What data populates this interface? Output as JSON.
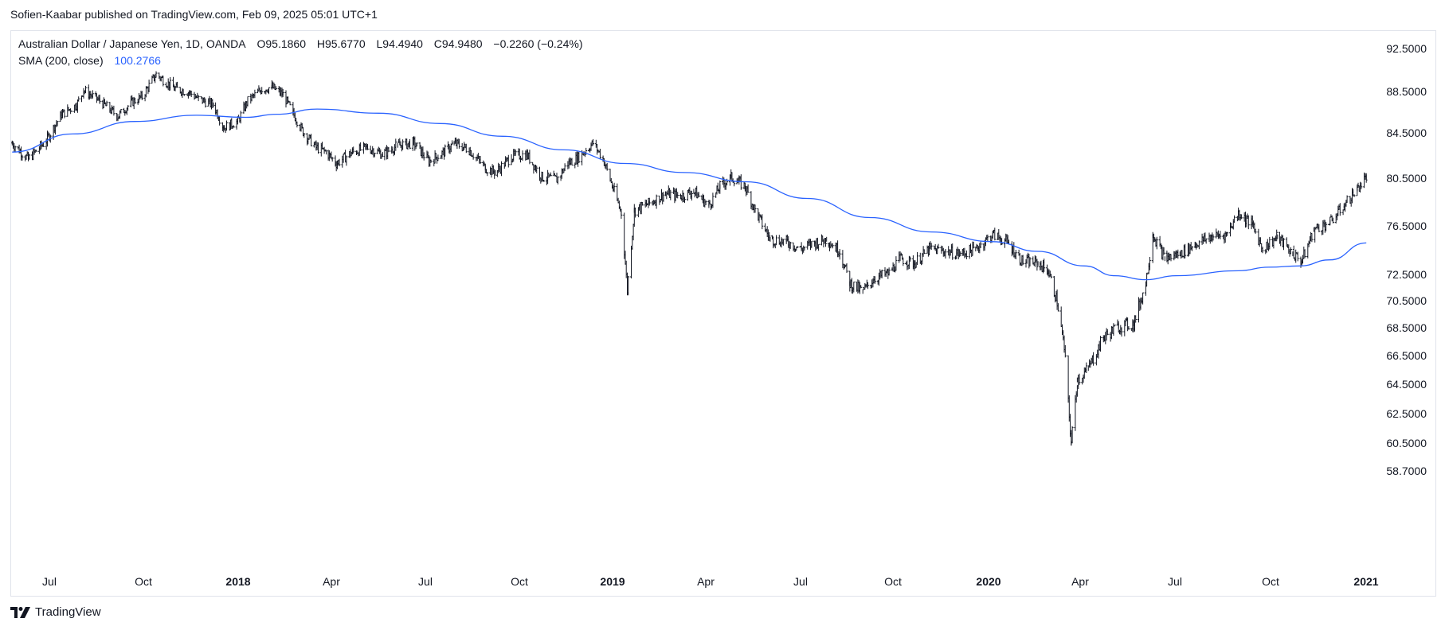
{
  "header": {
    "publish_text": "Sofien-Kaabar published on TradingView.com, Feb 09, 2025 05:01 UTC+1"
  },
  "legend": {
    "symbol": "Australian Dollar / Japanese Yen, 1D, OANDA",
    "open": "O95.1860",
    "high": "H95.6770",
    "low": "L94.4940",
    "close": "C94.9480",
    "change": "−0.2260 (−0.24%)",
    "indicator_label": "SMA (200, close)",
    "indicator_value": "100.2766",
    "indicator_color": "#2962ff"
  },
  "footer": {
    "brand": "TradingView"
  },
  "chart_data": {
    "type": "line",
    "title": "Australian Dollar / Japanese Yen, 1D, OANDA",
    "colors": {
      "price": "#131722",
      "sma": "#2962ff"
    },
    "y_axis": {
      "side": "right",
      "ticks": [
        "92.5000",
        "88.5000",
        "84.5000",
        "80.5000",
        "76.5000",
        "72.5000",
        "70.5000",
        "68.5000",
        "66.5000",
        "64.5000",
        "62.5000",
        "60.5000",
        "58.7000"
      ]
    },
    "x_axis": {
      "ticks": [
        {
          "label": "Jul",
          "bold": false
        },
        {
          "label": "Oct",
          "bold": false
        },
        {
          "label": "2018",
          "bold": true
        },
        {
          "label": "Apr",
          "bold": false
        },
        {
          "label": "Jul",
          "bold": false
        },
        {
          "label": "Oct",
          "bold": false
        },
        {
          "label": "2019",
          "bold": true
        },
        {
          "label": "Apr",
          "bold": false
        },
        {
          "label": "Jul",
          "bold": false
        },
        {
          "label": "Oct",
          "bold": false
        },
        {
          "label": "2020",
          "bold": true
        },
        {
          "label": "Apr",
          "bold": false
        },
        {
          "label": "Jul",
          "bold": false
        },
        {
          "label": "Oct",
          "bold": false
        },
        {
          "label": "2021",
          "bold": true
        }
      ]
    },
    "grid": false,
    "series": [
      {
        "name": "Australian Dollar / Japanese Yen",
        "style": "ohlc-bars",
        "points": [
          [
            "2017-05-02",
            83.6
          ],
          [
            "2017-05-18",
            82.2
          ],
          [
            "2017-06-05",
            83.8
          ],
          [
            "2017-06-20",
            86.3
          ],
          [
            "2017-07-05",
            87.2
          ],
          [
            "2017-07-12",
            88.6
          ],
          [
            "2017-07-28",
            87.6
          ],
          [
            "2017-08-15",
            86.1
          ],
          [
            "2017-08-28",
            87.4
          ],
          [
            "2017-09-08",
            88.0
          ],
          [
            "2017-09-22",
            90.1
          ],
          [
            "2017-10-10",
            88.8
          ],
          [
            "2017-10-25",
            88.4
          ],
          [
            "2017-11-03",
            87.8
          ],
          [
            "2017-11-18",
            87.2
          ],
          [
            "2017-11-28",
            85.0
          ],
          [
            "2017-12-12",
            85.6
          ],
          [
            "2017-12-22",
            87.6
          ],
          [
            "2018-01-05",
            88.7
          ],
          [
            "2018-01-15",
            88.9
          ],
          [
            "2018-01-26",
            88.2
          ],
          [
            "2018-02-05",
            86.4
          ],
          [
            "2018-02-15",
            84.6
          ],
          [
            "2018-02-28",
            83.2
          ],
          [
            "2018-03-10",
            82.8
          ],
          [
            "2018-03-20",
            81.8
          ],
          [
            "2018-04-05",
            82.8
          ],
          [
            "2018-04-20",
            83.2
          ],
          [
            "2018-05-05",
            82.6
          ],
          [
            "2018-05-20",
            83.4
          ],
          [
            "2018-06-05",
            83.6
          ],
          [
            "2018-06-20",
            82.0
          ],
          [
            "2018-07-05",
            82.8
          ],
          [
            "2018-07-15",
            83.6
          ],
          [
            "2018-07-30",
            83.0
          ],
          [
            "2018-08-15",
            81.4
          ],
          [
            "2018-08-25",
            81.0
          ],
          [
            "2018-09-10",
            82.4
          ],
          [
            "2018-09-25",
            82.6
          ],
          [
            "2018-10-10",
            80.6
          ],
          [
            "2018-10-25",
            80.4
          ],
          [
            "2018-11-05",
            81.8
          ],
          [
            "2018-11-15",
            82.3
          ],
          [
            "2018-11-30",
            83.6
          ],
          [
            "2018-12-10",
            82.2
          ],
          [
            "2018-12-20",
            79.6
          ],
          [
            "2018-12-28",
            77.6
          ],
          [
            "2019-01-03",
            71.3
          ],
          [
            "2019-01-10",
            77.8
          ],
          [
            "2019-01-25",
            78.4
          ],
          [
            "2019-02-10",
            79.2
          ],
          [
            "2019-02-25",
            79.0
          ],
          [
            "2019-03-10",
            79.4
          ],
          [
            "2019-03-25",
            78.2
          ],
          [
            "2019-04-05",
            79.8
          ],
          [
            "2019-04-16",
            80.6
          ],
          [
            "2019-04-30",
            79.8
          ],
          [
            "2019-05-10",
            77.8
          ],
          [
            "2019-05-25",
            75.4
          ],
          [
            "2019-06-10",
            75.2
          ],
          [
            "2019-06-25",
            74.6
          ],
          [
            "2019-07-05",
            75.0
          ],
          [
            "2019-07-20",
            75.4
          ],
          [
            "2019-08-02",
            74.4
          ],
          [
            "2019-08-12",
            71.8
          ],
          [
            "2019-08-25",
            71.2
          ],
          [
            "2019-09-05",
            72.2
          ],
          [
            "2019-09-20",
            72.6
          ],
          [
            "2019-10-01",
            73.8
          ],
          [
            "2019-10-15",
            73.4
          ],
          [
            "2019-10-30",
            74.6
          ],
          [
            "2019-11-15",
            74.4
          ],
          [
            "2019-11-30",
            74.2
          ],
          [
            "2019-12-15",
            74.6
          ],
          [
            "2020-01-01",
            75.8
          ],
          [
            "2020-01-15",
            75.2
          ],
          [
            "2020-01-30",
            73.6
          ],
          [
            "2020-02-15",
            73.4
          ],
          [
            "2020-02-25",
            72.8
          ],
          [
            "2020-03-05",
            70.4
          ],
          [
            "2020-03-12",
            67.0
          ],
          [
            "2020-03-19",
            60.5
          ],
          [
            "2020-03-25",
            64.8
          ],
          [
            "2020-04-05",
            65.6
          ],
          [
            "2020-04-20",
            67.8
          ],
          [
            "2020-05-05",
            68.6
          ],
          [
            "2020-05-20",
            68.8
          ],
          [
            "2020-06-01",
            71.8
          ],
          [
            "2020-06-08",
            75.8
          ],
          [
            "2020-06-20",
            73.8
          ],
          [
            "2020-07-05",
            74.2
          ],
          [
            "2020-07-20",
            75.0
          ],
          [
            "2020-08-05",
            75.6
          ],
          [
            "2020-08-20",
            75.8
          ],
          [
            "2020-09-01",
            77.6
          ],
          [
            "2020-09-15",
            76.6
          ],
          [
            "2020-09-25",
            74.6
          ],
          [
            "2020-10-10",
            75.6
          ],
          [
            "2020-10-25",
            74.2
          ],
          [
            "2020-11-03",
            73.6
          ],
          [
            "2020-11-15",
            76.2
          ],
          [
            "2020-12-01",
            76.8
          ],
          [
            "2020-12-15",
            78.2
          ],
          [
            "2020-12-28",
            79.6
          ],
          [
            "2021-01-06",
            80.6
          ]
        ]
      },
      {
        "name": "SMA (200, close)",
        "style": "line",
        "points": [
          [
            "2017-05-02",
            82.8
          ],
          [
            "2017-07-01",
            84.4
          ],
          [
            "2017-09-01",
            85.6
          ],
          [
            "2017-11-01",
            86.2
          ],
          [
            "2017-12-20",
            86.0
          ],
          [
            "2018-01-20",
            86.3
          ],
          [
            "2018-03-01",
            86.8
          ],
          [
            "2018-05-01",
            86.4
          ],
          [
            "2018-07-01",
            85.4
          ],
          [
            "2018-09-01",
            84.2
          ],
          [
            "2018-11-01",
            83.0
          ],
          [
            "2019-01-01",
            81.8
          ],
          [
            "2019-03-01",
            81.0
          ],
          [
            "2019-05-01",
            80.2
          ],
          [
            "2019-07-01",
            78.8
          ],
          [
            "2019-09-01",
            77.2
          ],
          [
            "2019-11-01",
            76.0
          ],
          [
            "2020-01-01",
            75.2
          ],
          [
            "2020-02-15",
            74.4
          ],
          [
            "2020-04-01",
            73.2
          ],
          [
            "2020-05-01",
            72.4
          ],
          [
            "2020-06-01",
            72.1
          ],
          [
            "2020-07-01",
            72.4
          ],
          [
            "2020-09-01",
            72.8
          ],
          [
            "2020-10-01",
            73.1
          ],
          [
            "2020-11-01",
            73.2
          ],
          [
            "2020-12-01",
            73.7
          ],
          [
            "2021-01-06",
            75.1
          ]
        ]
      }
    ]
  }
}
